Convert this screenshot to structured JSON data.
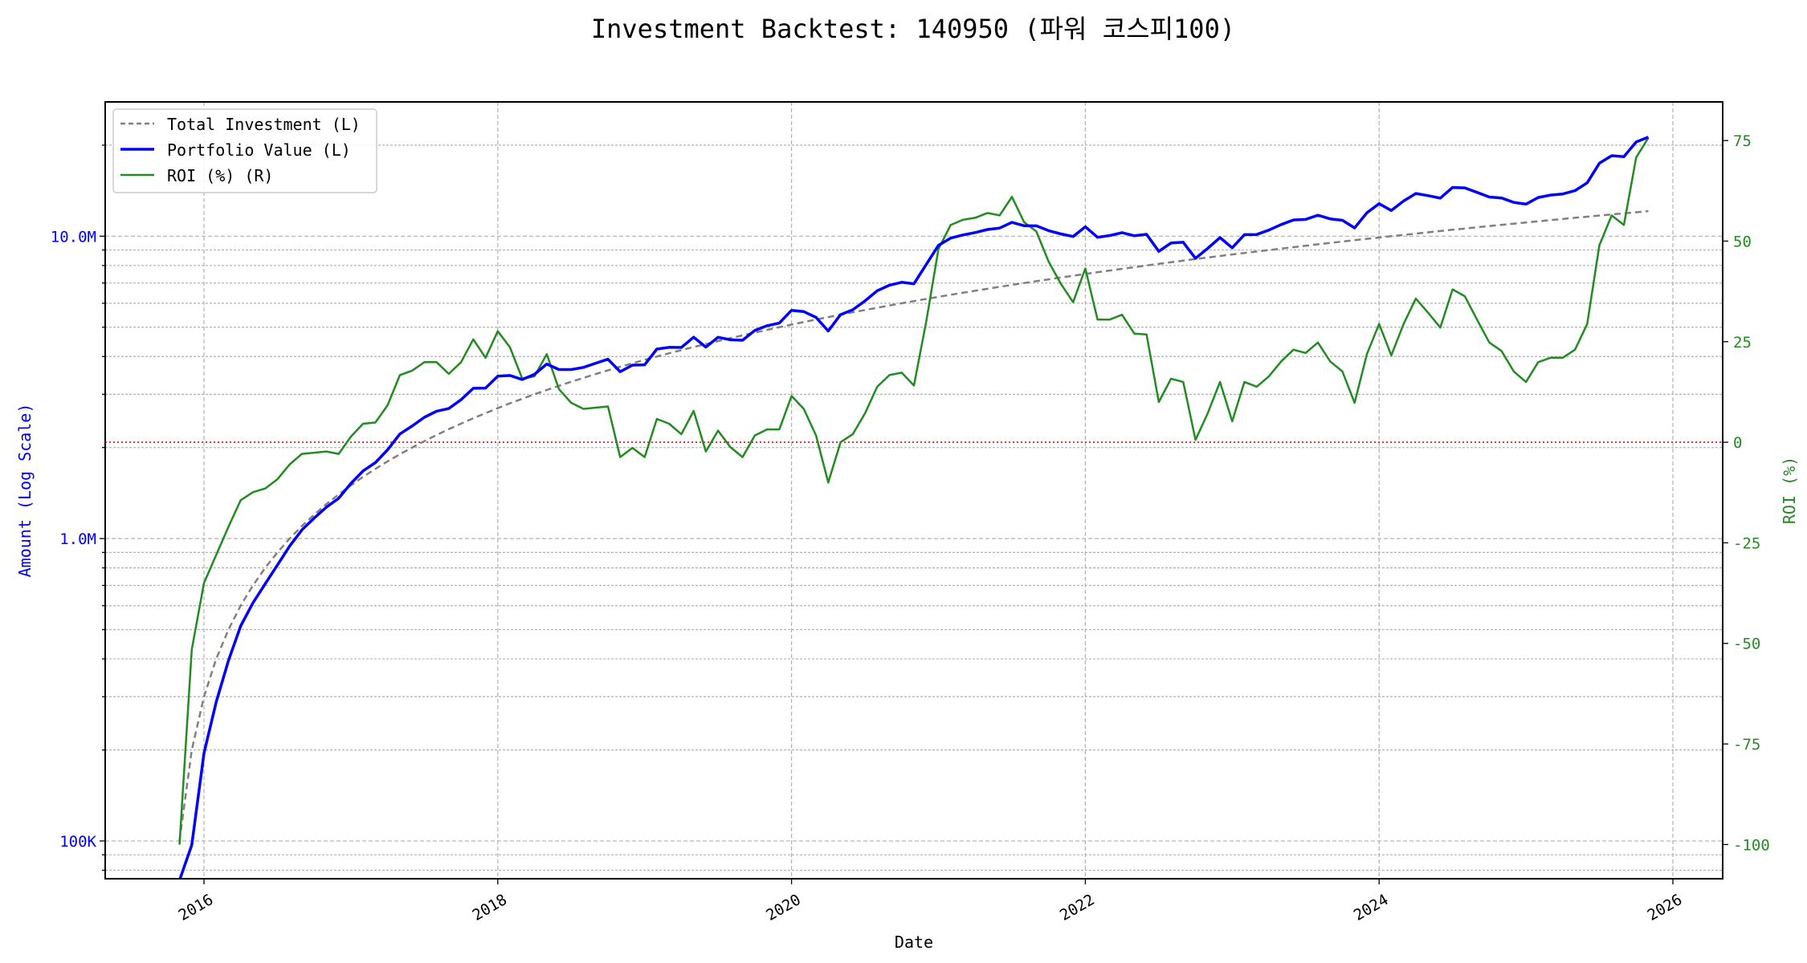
{
  "chart_data": {
    "type": "line",
    "title": "Investment Backtest: 140950 (파워 코스피100)",
    "xlabel": "Date",
    "ylabel_left": "Amount (Log Scale)",
    "ylabel_right": "ROI (%)",
    "left_axis": {
      "scale": "log",
      "ticks": [
        100000,
        1000000,
        10000000
      ],
      "tick_labels": [
        "100K",
        "1.0M",
        "10.0M"
      ],
      "ylim": [
        75000,
        27800000
      ],
      "color": "#0000ff"
    },
    "right_axis": {
      "scale": "linear",
      "ticks": [
        -100,
        -75,
        -50,
        -25,
        0,
        25,
        50,
        75
      ],
      "tick_labels": [
        "-100",
        "-75",
        "-50",
        "-25",
        "0",
        "25",
        "50",
        "75"
      ],
      "ylim": [
        -108.5,
        84.6
      ],
      "color": "#228b22"
    },
    "x_axis": {
      "ticks": [
        "2016",
        "2018",
        "2020",
        "2022",
        "2024",
        "2026"
      ],
      "xlim": [
        "2015-05",
        "2026-05"
      ]
    },
    "grid": true,
    "legend": {
      "placement": "top-left",
      "entries": [
        "Total Investment (L)",
        "Portfolio Value (L)",
        "ROI (%) (R)"
      ]
    },
    "reference_line": {
      "axis": "right",
      "value": 0,
      "color": "#ff0000",
      "style": "dotted"
    },
    "dates": [
      "2015-11",
      "2015-12",
      "2016-01",
      "2016-02",
      "2016-03",
      "2016-04",
      "2016-05",
      "2016-06",
      "2016-07",
      "2016-08",
      "2016-09",
      "2016-10",
      "2016-11",
      "2016-12",
      "2017-01",
      "2017-02",
      "2017-03",
      "2017-04",
      "2017-05",
      "2017-06",
      "2017-07",
      "2017-08",
      "2017-09",
      "2017-10",
      "2017-11",
      "2017-12",
      "2018-01",
      "2018-02",
      "2018-03",
      "2018-04",
      "2018-05",
      "2018-06",
      "2018-07",
      "2018-08",
      "2018-09",
      "2018-10",
      "2018-11",
      "2018-12",
      "2019-01",
      "2019-02",
      "2019-03",
      "2019-04",
      "2019-05",
      "2019-06",
      "2019-07",
      "2019-08",
      "2019-09",
      "2019-10",
      "2019-11",
      "2019-12",
      "2020-01",
      "2020-02",
      "2020-03",
      "2020-04",
      "2020-05",
      "2020-06",
      "2020-07",
      "2020-08",
      "2020-09",
      "2020-10",
      "2020-11",
      "2020-12",
      "2021-01",
      "2021-02",
      "2021-03",
      "2021-04",
      "2021-05",
      "2021-06",
      "2021-07",
      "2021-08",
      "2021-09",
      "2021-10",
      "2021-11",
      "2021-12",
      "2022-01",
      "2022-02",
      "2022-03",
      "2022-04",
      "2022-05",
      "2022-06",
      "2022-07",
      "2022-08",
      "2022-09",
      "2022-10",
      "2022-11",
      "2022-12",
      "2023-01",
      "2023-02",
      "2023-03",
      "2023-04",
      "2023-05",
      "2023-06",
      "2023-07",
      "2023-08",
      "2023-09",
      "2023-10",
      "2023-11",
      "2023-12",
      "2024-01",
      "2024-02",
      "2024-03",
      "2024-04",
      "2024-05",
      "2024-06",
      "2024-07",
      "2024-08",
      "2024-09",
      "2024-10",
      "2024-11",
      "2024-12",
      "2025-01",
      "2025-02",
      "2025-03",
      "2025-04",
      "2025-05",
      "2025-06",
      "2025-07",
      "2025-08",
      "2025-09",
      "2025-10",
      "2025-11"
    ],
    "series": [
      {
        "name": "Total Investment (L)",
        "axis": "left",
        "color": "#808080",
        "style": "dashed",
        "values": [
          100000,
          200000,
          300000,
          400000,
          500000,
          600000,
          700000,
          800000,
          900000,
          1000000,
          1100000,
          1200000,
          1300000,
          1400000,
          1500000,
          1600000,
          1700000,
          1800000,
          1900000,
          2000000,
          2100000,
          2200000,
          2300000,
          2400000,
          2500000,
          2600000,
          2700000,
          2800000,
          2900000,
          3000000,
          3100000,
          3200000,
          3300000,
          3400000,
          3500000,
          3600000,
          3700000,
          3800000,
          3900000,
          4000000,
          4100000,
          4200000,
          4300000,
          4400000,
          4500000,
          4600000,
          4700000,
          4800000,
          4900000,
          5000000,
          5100000,
          5200000,
          5300000,
          5400000,
          5500000,
          5600000,
          5700000,
          5800000,
          5900000,
          6000000,
          6100000,
          6200000,
          6300000,
          6400000,
          6500000,
          6600000,
          6700000,
          6800000,
          6900000,
          7000000,
          7100000,
          7200000,
          7300000,
          7400000,
          7500000,
          7600000,
          7700000,
          7800000,
          7900000,
          8000000,
          8100000,
          8200000,
          8300000,
          8400000,
          8500000,
          8600000,
          8700000,
          8800000,
          8900000,
          9000000,
          9100000,
          9200000,
          9300000,
          9400000,
          9500000,
          9600000,
          9700000,
          9800000,
          9900000,
          10000000,
          10100000,
          10200000,
          10300000,
          10400000,
          10500000,
          10600000,
          10700000,
          10800000,
          10900000,
          11000000,
          11100000,
          11200000,
          11300000,
          11400000,
          11500000,
          11600000,
          11700000,
          11800000,
          11900000,
          12000000,
          12100000
        ]
      },
      {
        "name": "Portfolio Value (L)",
        "axis": "left",
        "color": "#0000ff",
        "style": "solid",
        "values": [
          0,
          97000,
          195000,
          288000,
          395000,
          514000,
          613000,
          708000,
          817000,
          945000,
          1068000,
          1169000,
          1270000,
          1359000,
          1521000,
          1674000,
          1783000,
          1966000,
          2217000,
          2356000,
          2518000,
          2638000,
          2691000,
          2878000,
          3140000,
          3146000,
          3445000,
          3461000,
          3358000,
          3492000,
          3779000,
          3622000,
          3623000,
          3682000,
          3801000,
          3920000,
          3563000,
          3746000,
          3756000,
          4232000,
          4289000,
          4284000,
          4635000,
          4299000,
          4631000,
          4545000,
          4526000,
          4882000,
          5057000,
          5160000,
          5687000,
          5632000,
          5390000,
          4860000,
          5500000,
          5712000,
          6110000,
          6600000,
          6885000,
          7038000,
          6960000,
          8060000,
          9324000,
          9856000,
          10094000,
          10283000,
          10519000,
          10635000,
          11109000,
          10829000,
          10820000,
          10433000,
          10176000,
          9975000,
          10740000,
          9918000,
          10049000,
          10273000,
          10033000,
          10144000,
          8910000,
          9496000,
          9545000,
          8450000,
          9112000,
          9890000,
          9152000,
          10120000,
          10128000,
          10476000,
          10930000,
          11316000,
          11364000,
          11731000,
          11410000,
          11289000,
          10651000,
          11946000,
          12811000,
          12160000,
          13069000,
          13841000,
          13617000,
          13364000,
          14490000,
          14450000,
          13964000,
          13478000,
          13374000,
          12936000,
          12765000,
          13429000,
          13673000,
          13794000,
          14145000,
          15011000,
          17433000,
          18455000,
          18326000,
          20496000,
          21260000
        ]
      },
      {
        "name": "ROI (%) (R)",
        "axis": "right",
        "color": "#228b22",
        "style": "solid",
        "values": [
          -100,
          -51.5,
          -35,
          -28,
          -21,
          -14.4,
          -12.4,
          -11.5,
          -9.2,
          -5.5,
          -2.9,
          -2.6,
          -2.3,
          -2.9,
          1.4,
          4.6,
          4.9,
          9.2,
          16.7,
          17.8,
          19.9,
          19.9,
          17,
          19.9,
          25.6,
          21,
          27.6,
          23.6,
          15.8,
          16.4,
          21.9,
          13.2,
          9.8,
          8.3,
          8.6,
          8.9,
          -3.7,
          -1.4,
          -3.7,
          5.8,
          4.6,
          2,
          7.8,
          -2.3,
          2.9,
          -1.2,
          -3.7,
          1.7,
          3.2,
          3.2,
          11.5,
          8.3,
          1.7,
          -10,
          0,
          2,
          7.2,
          13.8,
          16.7,
          17.3,
          14.1,
          30,
          48,
          54,
          55.3,
          55.8,
          57,
          56.4,
          61,
          54.7,
          52.4,
          44.9,
          39.4,
          34.8,
          43.2,
          30.5,
          30.5,
          31.7,
          27,
          26.8,
          10,
          15.8,
          15,
          0.6,
          7.2,
          15,
          5.2,
          15,
          13.8,
          16.4,
          20.1,
          23,
          22.2,
          24.8,
          20.1,
          17.6,
          9.8,
          21.9,
          29.4,
          21.6,
          29.4,
          35.7,
          32.2,
          28.5,
          38,
          36.3,
          30.5,
          24.8,
          22.7,
          17.6,
          15,
          19.9,
          21,
          21,
          23,
          29.4,
          49,
          56.4,
          54,
          70.8,
          75.7
        ]
      }
    ]
  }
}
